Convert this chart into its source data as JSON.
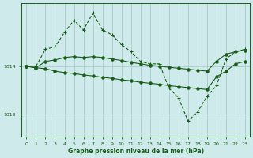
{
  "bg_color": "#ceeaea",
  "grid_color": "#aacccc",
  "line_color": "#1a5c1a",
  "title": "Graphe pression niveau de la mer (hPa)",
  "ylabel_ticks": [
    1013,
    1014
  ],
  "xlim": [
    -0.5,
    23.5
  ],
  "ylim": [
    1012.55,
    1015.3
  ],
  "series1_x": [
    0,
    1,
    2,
    3,
    4,
    5,
    6,
    7,
    8,
    9,
    10,
    11,
    12,
    13,
    14,
    15,
    16,
    17,
    18,
    19,
    20,
    21,
    22,
    23
  ],
  "series1_y": [
    1014.0,
    1014.0,
    1014.35,
    1014.4,
    1014.7,
    1014.95,
    1014.75,
    1015.1,
    1014.75,
    1014.65,
    1014.45,
    1014.3,
    1014.1,
    1014.05,
    1014.05,
    1013.55,
    1013.35,
    1012.87,
    1013.05,
    1013.38,
    1013.6,
    1014.15,
    1014.3,
    1014.35
  ],
  "series2_x": [
    0,
    1,
    2,
    3,
    4,
    5,
    6,
    7,
    8,
    9,
    10,
    11,
    12,
    13,
    14,
    15,
    16,
    17,
    18,
    19,
    20,
    21,
    22,
    23
  ],
  "series2_y": [
    1014.0,
    1013.97,
    1014.1,
    1014.13,
    1014.18,
    1014.2,
    1014.18,
    1014.2,
    1014.18,
    1014.15,
    1014.12,
    1014.08,
    1014.05,
    1014.02,
    1014.0,
    1013.98,
    1013.96,
    1013.94,
    1013.92,
    1013.9,
    1014.1,
    1014.25,
    1014.3,
    1014.33
  ],
  "series3_x": [
    0,
    1,
    2,
    3,
    4,
    5,
    6,
    7,
    8,
    9,
    10,
    11,
    12,
    13,
    14,
    15,
    16,
    17,
    18,
    19,
    20,
    21,
    22,
    23
  ],
  "series3_y": [
    1014.0,
    1013.97,
    1013.95,
    1013.9,
    1013.87,
    1013.85,
    1013.82,
    1013.8,
    1013.77,
    1013.75,
    1013.72,
    1013.7,
    1013.67,
    1013.65,
    1013.63,
    1013.6,
    1013.58,
    1013.56,
    1013.54,
    1013.52,
    1013.78,
    1013.9,
    1014.05,
    1014.1
  ]
}
